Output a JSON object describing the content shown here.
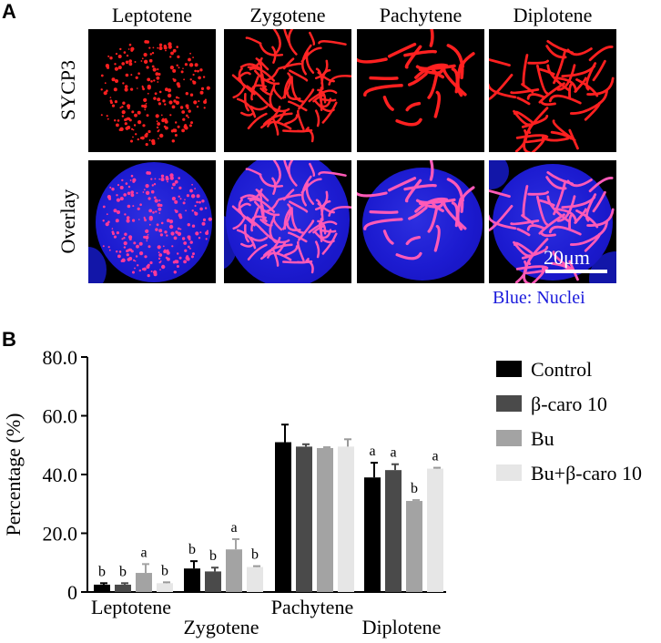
{
  "panel_a": {
    "letter": "A",
    "stages": [
      "Leptotene",
      "Zygotene",
      "Pachytene",
      "Diplotene"
    ],
    "row_labels": [
      "SYCP3",
      "Overlay"
    ],
    "scale_bar": "20μm",
    "caption": "Blue: Nuclei"
  },
  "panel_b": {
    "letter": "B"
  },
  "chart_data": {
    "type": "bar",
    "title": "",
    "xlabel": "",
    "ylabel": "Percentage (%)",
    "ylim": [
      0,
      80
    ],
    "yticks": [
      "0",
      "20.0",
      "40.0",
      "60.0",
      "80.0"
    ],
    "categories": [
      "Leptotene",
      "Zygotene",
      "Pachytene",
      "Diplotene"
    ],
    "series": [
      {
        "name": "Control",
        "color": "#000000",
        "values": [
          2.5,
          8.0,
          51.0,
          39.0
        ],
        "errors": [
          0.5,
          2.5,
          6.0,
          5.0
        ],
        "letters": [
          "b",
          "b",
          "",
          "a"
        ]
      },
      {
        "name": "β-caro 10",
        "color": "#4a4a4a",
        "values": [
          2.5,
          7.0,
          49.5,
          41.5
        ],
        "errors": [
          0.5,
          1.3,
          0.8,
          2.0
        ],
        "letters": [
          "b",
          "b",
          "",
          "a"
        ]
      },
      {
        "name": "Bu",
        "color": "#a3a3a3",
        "values": [
          6.5,
          14.5,
          49.0,
          31.0
        ],
        "errors": [
          3.0,
          3.5,
          0.3,
          0.3
        ],
        "letters": [
          "a",
          "a",
          "",
          "b"
        ]
      },
      {
        "name": "Bu+β-caro 10",
        "color": "#e6e6e6",
        "values": [
          3.0,
          8.5,
          49.5,
          42.0
        ],
        "errors": [
          0.3,
          0.3,
          2.5,
          0.3
        ],
        "letters": [
          "b",
          "b",
          "",
          "a"
        ]
      }
    ],
    "legend_position": "right",
    "grid": false
  }
}
